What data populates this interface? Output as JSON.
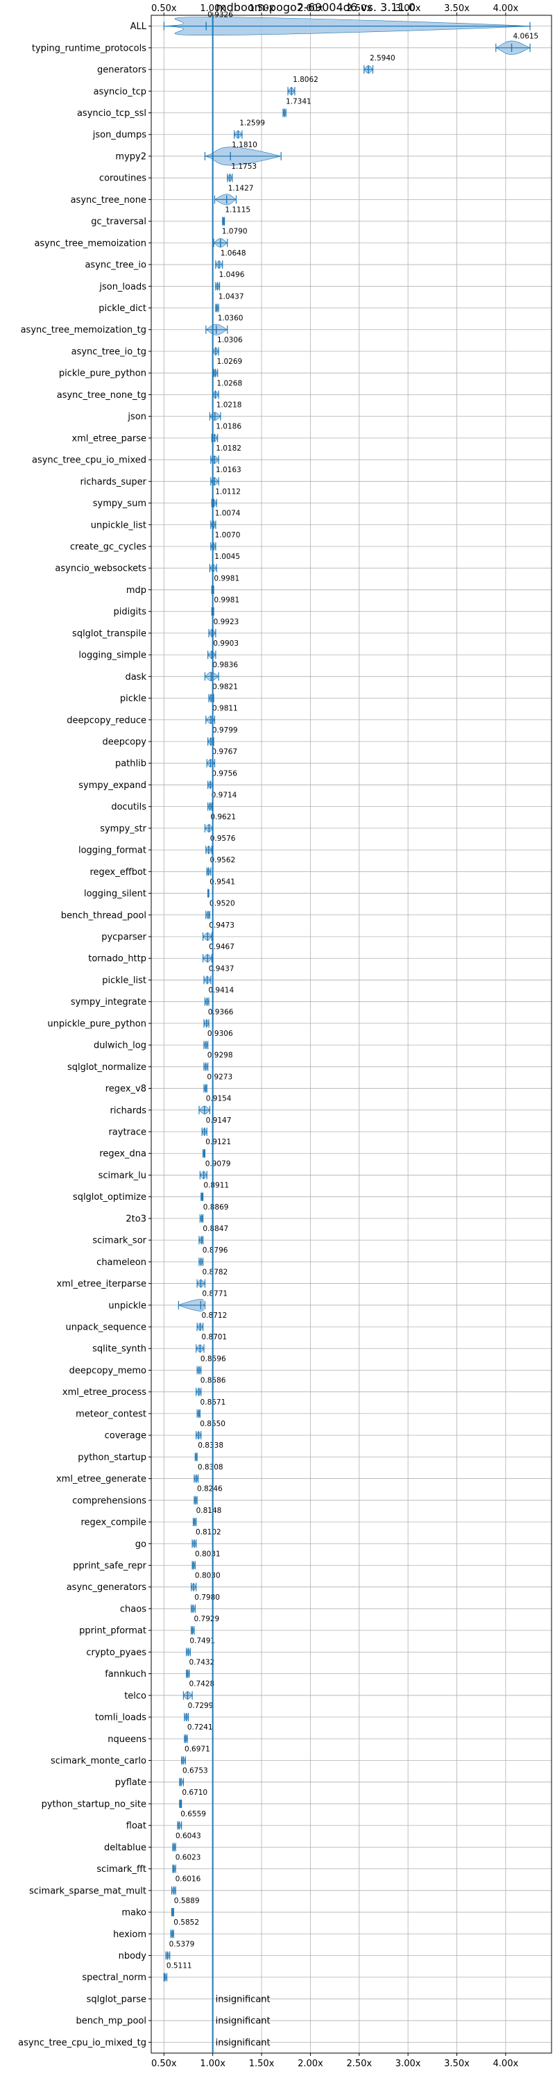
{
  "chart_data": {
    "type": "violin",
    "title": "mdboom-pogo2-69004d6 vs. 3.11.0",
    "xlabel": "",
    "ylabel": "",
    "xlim": [
      0.37,
      4.47
    ],
    "x_ticks": [
      0.5,
      1.0,
      1.5,
      2.0,
      2.5,
      3.0,
      3.5,
      4.0
    ],
    "x_tick_labels": [
      "0.50x",
      "1.00x",
      "1.50x",
      "2.00x",
      "2.50x",
      "3.00x",
      "3.50x",
      "4.00x"
    ],
    "reference_line": 1.0,
    "grid": true,
    "color": "#1f77b4",
    "fill_color": "#a6c8e6",
    "insignificant_label": "insignificant",
    "rows": [
      {
        "name": "ALL",
        "value": 0.9326,
        "label": "0.9326",
        "min": 0.5,
        "max": 4.25
      },
      {
        "name": "typing_runtime_protocols",
        "value": 4.0615,
        "label": "4.0615",
        "min": 3.9,
        "max": 4.25
      },
      {
        "name": "generators",
        "value": 2.594,
        "label": "2.5940",
        "min": 2.55,
        "max": 2.64
      },
      {
        "name": "asyncio_tcp",
        "value": 1.8062,
        "label": "1.8062",
        "min": 1.77,
        "max": 1.84
      },
      {
        "name": "asyncio_tcp_ssl",
        "value": 1.7341,
        "label": "1.7341",
        "min": 1.72,
        "max": 1.75
      },
      {
        "name": "json_dumps",
        "value": 1.2599,
        "label": "1.2599",
        "min": 1.22,
        "max": 1.3
      },
      {
        "name": "mypy2",
        "value": 1.181,
        "label": "1.1810",
        "min": 0.92,
        "max": 1.7
      },
      {
        "name": "coroutines",
        "value": 1.1753,
        "label": "1.1753",
        "min": 1.15,
        "max": 1.2
      },
      {
        "name": "async_tree_none",
        "value": 1.1427,
        "label": "1.1427",
        "min": 1.02,
        "max": 1.24
      },
      {
        "name": "gc_traversal",
        "value": 1.1115,
        "label": "1.1115",
        "min": 1.1,
        "max": 1.12
      },
      {
        "name": "async_tree_memoization",
        "value": 1.079,
        "label": "1.0790",
        "min": 1.01,
        "max": 1.15
      },
      {
        "name": "async_tree_io",
        "value": 1.0648,
        "label": "1.0648",
        "min": 1.03,
        "max": 1.1
      },
      {
        "name": "json_loads",
        "value": 1.0496,
        "label": "1.0496",
        "min": 1.03,
        "max": 1.07
      },
      {
        "name": "pickle_dict",
        "value": 1.0437,
        "label": "1.0437",
        "min": 1.03,
        "max": 1.06
      },
      {
        "name": "async_tree_memoization_tg",
        "value": 1.036,
        "label": "1.0360",
        "min": 0.93,
        "max": 1.15
      },
      {
        "name": "async_tree_io_tg",
        "value": 1.0306,
        "label": "1.0306",
        "min": 1.0,
        "max": 1.06
      },
      {
        "name": "pickle_pure_python",
        "value": 1.0269,
        "label": "1.0269",
        "min": 1.01,
        "max": 1.05
      },
      {
        "name": "async_tree_none_tg",
        "value": 1.0268,
        "label": "1.0268",
        "min": 1.0,
        "max": 1.06
      },
      {
        "name": "json",
        "value": 1.0218,
        "label": "1.0218",
        "min": 0.97,
        "max": 1.08
      },
      {
        "name": "xml_etree_parse",
        "value": 1.0186,
        "label": "1.0186",
        "min": 0.99,
        "max": 1.05
      },
      {
        "name": "async_tree_cpu_io_mixed",
        "value": 1.0182,
        "label": "1.0182",
        "min": 0.98,
        "max": 1.06
      },
      {
        "name": "richards_super",
        "value": 1.0163,
        "label": "1.0163",
        "min": 0.98,
        "max": 1.06
      },
      {
        "name": "sympy_sum",
        "value": 1.0112,
        "label": "1.0112",
        "min": 0.99,
        "max": 1.04
      },
      {
        "name": "unpickle_list",
        "value": 1.0074,
        "label": "1.0074",
        "min": 0.98,
        "max": 1.03
      },
      {
        "name": "create_gc_cycles",
        "value": 1.007,
        "label": "1.0070",
        "min": 0.98,
        "max": 1.03
      },
      {
        "name": "asyncio_websockets",
        "value": 1.0045,
        "label": "1.0045",
        "min": 0.97,
        "max": 1.04
      },
      {
        "name": "mdp",
        "value": 0.9981,
        "label": "0.9981",
        "min": 0.99,
        "max": 1.01
      },
      {
        "name": "pidigits",
        "value": 0.9981,
        "label": "0.9981",
        "min": 0.99,
        "max": 1.01
      },
      {
        "name": "sqlglot_transpile",
        "value": 0.9923,
        "label": "0.9923",
        "min": 0.96,
        "max": 1.03
      },
      {
        "name": "logging_simple",
        "value": 0.9903,
        "label": "0.9903",
        "min": 0.95,
        "max": 1.03
      },
      {
        "name": "dask",
        "value": 0.9836,
        "label": "0.9836",
        "min": 0.92,
        "max": 1.06
      },
      {
        "name": "pickle",
        "value": 0.9821,
        "label": "0.9821",
        "min": 0.96,
        "max": 1.01
      },
      {
        "name": "deepcopy_reduce",
        "value": 0.9811,
        "label": "0.9811",
        "min": 0.93,
        "max": 1.02
      },
      {
        "name": "deepcopy",
        "value": 0.9799,
        "label": "0.9799",
        "min": 0.95,
        "max": 1.01
      },
      {
        "name": "pathlib",
        "value": 0.9767,
        "label": "0.9767",
        "min": 0.94,
        "max": 1.02
      },
      {
        "name": "sympy_expand",
        "value": 0.9756,
        "label": "0.9756",
        "min": 0.95,
        "max": 1.0
      },
      {
        "name": "docutils",
        "value": 0.9714,
        "label": "0.9714",
        "min": 0.95,
        "max": 0.99
      },
      {
        "name": "sympy_str",
        "value": 0.9621,
        "label": "0.9621",
        "min": 0.92,
        "max": 1.0
      },
      {
        "name": "logging_format",
        "value": 0.9576,
        "label": "0.9576",
        "min": 0.93,
        "max": 0.99
      },
      {
        "name": "regex_effbot",
        "value": 0.9562,
        "label": "0.9562",
        "min": 0.94,
        "max": 0.98
      },
      {
        "name": "logging_silent",
        "value": 0.9541,
        "label": "0.9541",
        "min": 0.95,
        "max": 0.96
      },
      {
        "name": "bench_thread_pool",
        "value": 0.952,
        "label": "0.9520",
        "min": 0.93,
        "max": 0.97
      },
      {
        "name": "pycparser",
        "value": 0.9473,
        "label": "0.9473",
        "min": 0.9,
        "max": 0.99
      },
      {
        "name": "tornado_http",
        "value": 0.9467,
        "label": "0.9467",
        "min": 0.9,
        "max": 0.99
      },
      {
        "name": "pickle_list",
        "value": 0.9437,
        "label": "0.9437",
        "min": 0.91,
        "max": 0.98
      },
      {
        "name": "sympy_integrate",
        "value": 0.9414,
        "label": "0.9414",
        "min": 0.92,
        "max": 0.96
      },
      {
        "name": "unpickle_pure_python",
        "value": 0.9366,
        "label": "0.9366",
        "min": 0.91,
        "max": 0.96
      },
      {
        "name": "dulwich_log",
        "value": 0.9306,
        "label": "0.9306",
        "min": 0.91,
        "max": 0.95
      },
      {
        "name": "sqlglot_normalize",
        "value": 0.9298,
        "label": "0.9298",
        "min": 0.91,
        "max": 0.95
      },
      {
        "name": "regex_v8",
        "value": 0.9273,
        "label": "0.9273",
        "min": 0.91,
        "max": 0.94
      },
      {
        "name": "richards",
        "value": 0.9154,
        "label": "0.9154",
        "min": 0.86,
        "max": 0.97
      },
      {
        "name": "raytrace",
        "value": 0.9147,
        "label": "0.9147",
        "min": 0.89,
        "max": 0.94
      },
      {
        "name": "regex_dna",
        "value": 0.9121,
        "label": "0.9121",
        "min": 0.9,
        "max": 0.92
      },
      {
        "name": "scimark_lu",
        "value": 0.9079,
        "label": "0.9079",
        "min": 0.87,
        "max": 0.94
      },
      {
        "name": "sqlglot_optimize",
        "value": 0.8911,
        "label": "0.8911",
        "min": 0.88,
        "max": 0.9
      },
      {
        "name": "2to3",
        "value": 0.8869,
        "label": "0.8869",
        "min": 0.87,
        "max": 0.9
      },
      {
        "name": "scimark_sor",
        "value": 0.8847,
        "label": "0.8847",
        "min": 0.86,
        "max": 0.9
      },
      {
        "name": "chameleon",
        "value": 0.8796,
        "label": "0.8796",
        "min": 0.86,
        "max": 0.9
      },
      {
        "name": "xml_etree_iterparse",
        "value": 0.8782,
        "label": "0.8782",
        "min": 0.84,
        "max": 0.92
      },
      {
        "name": "unpickle",
        "value": 0.8771,
        "label": "0.8771",
        "min": 0.65,
        "max": 0.92
      },
      {
        "name": "unpack_sequence",
        "value": 0.8712,
        "label": "0.8712",
        "min": 0.84,
        "max": 0.9
      },
      {
        "name": "sqlite_synth",
        "value": 0.8701,
        "label": "0.8701",
        "min": 0.83,
        "max": 0.91
      },
      {
        "name": "deepcopy_memo",
        "value": 0.8596,
        "label": "0.8596",
        "min": 0.84,
        "max": 0.88
      },
      {
        "name": "xml_etree_process",
        "value": 0.8586,
        "label": "0.8586",
        "min": 0.83,
        "max": 0.88
      },
      {
        "name": "meteor_contest",
        "value": 0.8571,
        "label": "0.8571",
        "min": 0.84,
        "max": 0.87
      },
      {
        "name": "coverage",
        "value": 0.855,
        "label": "0.8550",
        "min": 0.83,
        "max": 0.88
      },
      {
        "name": "python_startup",
        "value": 0.8338,
        "label": "0.8338",
        "min": 0.82,
        "max": 0.84
      },
      {
        "name": "xml_etree_generate",
        "value": 0.8308,
        "label": "0.8308",
        "min": 0.81,
        "max": 0.85
      },
      {
        "name": "comprehensions",
        "value": 0.8246,
        "label": "0.8246",
        "min": 0.81,
        "max": 0.84
      },
      {
        "name": "regex_compile",
        "value": 0.8148,
        "label": "0.8148",
        "min": 0.8,
        "max": 0.83
      },
      {
        "name": "go",
        "value": 0.8102,
        "label": "0.8102",
        "min": 0.79,
        "max": 0.83
      },
      {
        "name": "pprint_safe_repr",
        "value": 0.8031,
        "label": "0.8031",
        "min": 0.79,
        "max": 0.82
      },
      {
        "name": "async_generators",
        "value": 0.803,
        "label": "0.8030",
        "min": 0.78,
        "max": 0.83
      },
      {
        "name": "chaos",
        "value": 0.798,
        "label": "0.7980",
        "min": 0.78,
        "max": 0.82
      },
      {
        "name": "pprint_pformat",
        "value": 0.7929,
        "label": "0.7929",
        "min": 0.78,
        "max": 0.81
      },
      {
        "name": "crypto_pyaes",
        "value": 0.7491,
        "label": "0.7491",
        "min": 0.73,
        "max": 0.77
      },
      {
        "name": "fannkuch",
        "value": 0.7432,
        "label": "0.7432",
        "min": 0.73,
        "max": 0.76
      },
      {
        "name": "telco",
        "value": 0.7428,
        "label": "0.7428",
        "min": 0.7,
        "max": 0.79
      },
      {
        "name": "tomli_loads",
        "value": 0.7299,
        "label": "0.7299",
        "min": 0.71,
        "max": 0.75
      },
      {
        "name": "nqueens",
        "value": 0.7241,
        "label": "0.7241",
        "min": 0.71,
        "max": 0.74
      },
      {
        "name": "scimark_monte_carlo",
        "value": 0.6971,
        "label": "0.6971",
        "min": 0.68,
        "max": 0.72
      },
      {
        "name": "pyflate",
        "value": 0.6753,
        "label": "0.6753",
        "min": 0.66,
        "max": 0.7
      },
      {
        "name": "python_startup_no_site",
        "value": 0.671,
        "label": "0.6710",
        "min": 0.66,
        "max": 0.68
      },
      {
        "name": "float",
        "value": 0.6559,
        "label": "0.6559",
        "min": 0.64,
        "max": 0.68
      },
      {
        "name": "deltablue",
        "value": 0.6043,
        "label": "0.6043",
        "min": 0.59,
        "max": 0.62
      },
      {
        "name": "scimark_fft",
        "value": 0.6023,
        "label": "0.6023",
        "min": 0.59,
        "max": 0.62
      },
      {
        "name": "scimark_sparse_mat_mult",
        "value": 0.6016,
        "label": "0.6016",
        "min": 0.58,
        "max": 0.62
      },
      {
        "name": "mako",
        "value": 0.5889,
        "label": "0.5889",
        "min": 0.58,
        "max": 0.6
      },
      {
        "name": "hexiom",
        "value": 0.5852,
        "label": "0.5852",
        "min": 0.57,
        "max": 0.6
      },
      {
        "name": "nbody",
        "value": 0.5379,
        "label": "0.5379",
        "min": 0.52,
        "max": 0.56
      },
      {
        "name": "spectral_norm",
        "value": 0.5111,
        "label": "0.5111",
        "min": 0.5,
        "max": 0.53
      },
      {
        "name": "sqlglot_parse",
        "value": null,
        "label": "insignificant",
        "min": null,
        "max": null
      },
      {
        "name": "bench_mp_pool",
        "value": null,
        "label": "insignificant",
        "min": null,
        "max": null
      },
      {
        "name": "async_tree_cpu_io_mixed_tg",
        "value": null,
        "label": "insignificant",
        "min": null,
        "max": null
      }
    ]
  }
}
